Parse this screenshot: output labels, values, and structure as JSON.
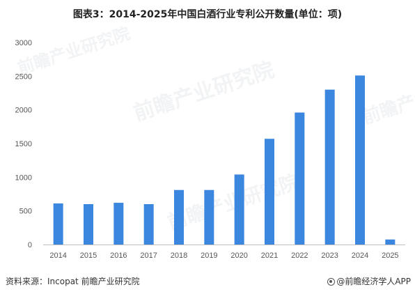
{
  "chart_data": {
    "type": "bar",
    "title": "图表3：2014-2025年中国白酒行业专利公开数量(单位：项)",
    "categories": [
      "2014",
      "2015",
      "2016",
      "2017",
      "2018",
      "2019",
      "2020",
      "2021",
      "2022",
      "2023",
      "2024",
      "2025"
    ],
    "values": [
      610,
      600,
      620,
      600,
      810,
      810,
      1040,
      1570,
      1960,
      2300,
      2510,
      75
    ],
    "yticks": [
      0,
      500,
      1000,
      1500,
      2000,
      2500,
      3000
    ],
    "ylim": [
      0,
      3000
    ],
    "xlabel": "",
    "ylabel": "",
    "bar_color": "#3B87E0",
    "grid": false,
    "legend": "none"
  },
  "footer": {
    "source": "资料来源：Incopat 前瞻产业研究院",
    "brand": "@前瞻经济学人APP"
  },
  "watermark": {
    "text": "前瞻产业研究院"
  }
}
